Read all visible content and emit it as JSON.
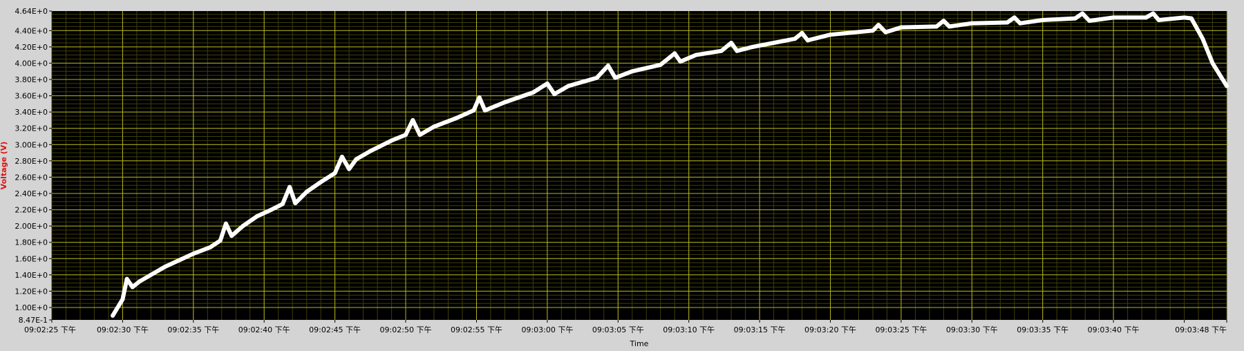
{
  "colors": {
    "background": "#d4d4d4",
    "plot_bg": "#000000",
    "major_grid": "#b4b41e",
    "minor_grid": "#3f3f0a",
    "trace": "#ffffff",
    "ylabel": "#e01010",
    "tick_text": "#000000"
  },
  "chart_data": {
    "type": "line",
    "title": "",
    "xlabel": "Time",
    "ylabel": "Voltage (V)",
    "grid": true,
    "ylim": [
      0.847,
      4.64
    ],
    "xlim": [
      "09:02:25",
      "09:03:48"
    ],
    "x_tick_labels": [
      "09:02:25 下午",
      "09:02:30 下午",
      "09:02:35 下午",
      "09:02:40 下午",
      "09:02:45 下午",
      "09:02:50 下午",
      "09:02:55 下午",
      "09:03:00 下午",
      "09:03:05 下午",
      "09:03:10 下午",
      "09:03:15 下午",
      "09:03:20 下午",
      "09:03:25 下午",
      "09:03:30 下午",
      "09:03:35 下午",
      "09:03:40 下午",
      "09:03:48 下午"
    ],
    "y_tick_labels": [
      "8.47E-1",
      "1.00E+0",
      "1.20E+0",
      "1.40E+0",
      "1.60E+0",
      "1.80E+0",
      "2.00E+0",
      "2.20E+0",
      "2.40E+0",
      "2.60E+0",
      "2.80E+0",
      "3.00E+0",
      "3.20E+0",
      "3.40E+0",
      "3.60E+0",
      "3.80E+0",
      "4.00E+0",
      "4.20E+0",
      "4.40E+0",
      "4.64E+0"
    ],
    "series": [
      {
        "x": [
          "09:02:29.3",
          "09:02:30.0",
          "09:02:30.3",
          "09:02:30.7",
          "09:02:31.2",
          "09:02:32.0",
          "09:02:33.0",
          "09:02:34.0",
          "09:02:35.0",
          "09:02:36.2",
          "09:02:36.9",
          "09:02:37.3",
          "09:02:37.7",
          "09:02:38.5",
          "09:02:39.5",
          "09:02:40.5",
          "09:02:41.3",
          "09:02:41.8",
          "09:02:42.2",
          "09:02:43.0",
          "09:02:44.0",
          "09:02:45.0",
          "09:02:45.5",
          "09:02:46.0",
          "09:02:46.5",
          "09:02:47.5",
          "09:02:49.0",
          "09:02:50.0",
          "09:02:50.5",
          "09:02:51.0",
          "09:02:52.0",
          "09:02:53.5",
          "09:02:54.8",
          "09:02:55.2",
          "09:02:55.6",
          "09:02:57.0",
          "09:02:59.0",
          "09:03:00.0",
          "09:03:00.5",
          "09:03:01.5",
          "09:03:03.5",
          "09:03:04.3",
          "09:03:04.8",
          "09:03:06.0",
          "09:03:08.0",
          "09:03:09.0",
          "09:03:09.4",
          "09:03:10.5",
          "09:03:12.3",
          "09:03:13.0",
          "09:03:13.4",
          "09:03:14.5",
          "09:03:17.5",
          "09:03:18.0",
          "09:03:18.4",
          "09:03:20.0",
          "09:03:23.0",
          "09:03:23.4",
          "09:03:23.9",
          "09:03:25.0",
          "09:03:27.5",
          "09:03:28.0",
          "09:03:28.4",
          "09:03:30.0",
          "09:03:32.5",
          "09:03:33.0",
          "09:03:33.4",
          "09:03:35.0",
          "09:03:37.3",
          "09:03:37.8",
          "09:03:38.3",
          "09:03:40.0",
          "09:03:42.3",
          "09:03:42.8",
          "09:03:43.2",
          "09:03:45.0",
          "09:03:45.5",
          "09:03:46.3",
          "09:03:47.0",
          "09:03:48.0"
        ],
        "values": [
          0.9,
          1.1,
          1.35,
          1.25,
          1.32,
          1.4,
          1.5,
          1.58,
          1.66,
          1.74,
          1.82,
          2.03,
          1.88,
          2.0,
          2.12,
          2.2,
          2.27,
          2.48,
          2.28,
          2.42,
          2.54,
          2.65,
          2.85,
          2.7,
          2.82,
          2.92,
          3.05,
          3.12,
          3.3,
          3.12,
          3.22,
          3.32,
          3.42,
          3.58,
          3.42,
          3.52,
          3.64,
          3.75,
          3.62,
          3.72,
          3.82,
          3.97,
          3.82,
          3.9,
          3.98,
          4.12,
          4.02,
          4.1,
          4.15,
          4.25,
          4.15,
          4.2,
          4.3,
          4.37,
          4.28,
          4.35,
          4.4,
          4.47,
          4.38,
          4.44,
          4.45,
          4.52,
          4.45,
          4.49,
          4.5,
          4.56,
          4.49,
          4.53,
          4.55,
          4.61,
          4.52,
          4.56,
          4.56,
          4.61,
          4.53,
          4.56,
          4.55,
          4.3,
          4.0,
          3.72
        ]
      }
    ]
  }
}
